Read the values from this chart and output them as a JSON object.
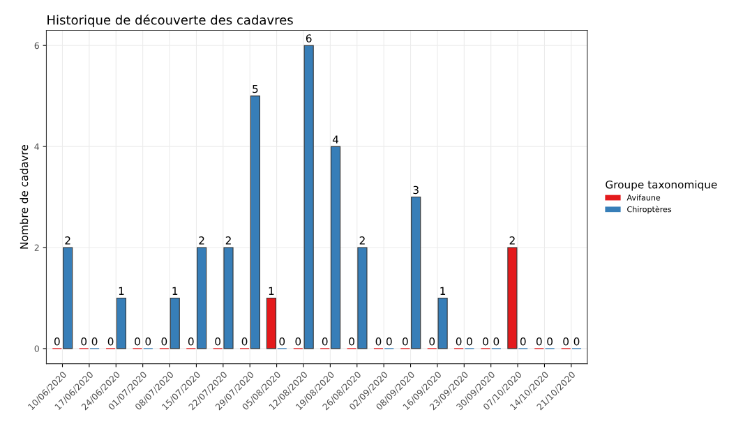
{
  "chart_data": {
    "type": "bar",
    "title": "Historique de découverte des cadavres",
    "ylabel": "Nombre de cadavre",
    "legend_title": "Groupe taxonomique",
    "categories": [
      "10/06/2020",
      "17/06/2020",
      "24/06/2020",
      "01/07/2020",
      "08/07/2020",
      "15/07/2020",
      "22/07/2020",
      "29/07/2020",
      "05/08/2020",
      "12/08/2020",
      "19/08/2020",
      "26/08/2020",
      "02/09/2020",
      "08/09/2020",
      "16/09/2020",
      "23/09/2020",
      "30/09/2020",
      "07/10/2020",
      "14/10/2020",
      "21/10/2020"
    ],
    "series": [
      {
        "name": "Avifaune",
        "color": "#e41a1c",
        "values": [
          0,
          0,
          0,
          0,
          0,
          0,
          0,
          0,
          1,
          0,
          0,
          0,
          0,
          0,
          0,
          0,
          0,
          2,
          0,
          0
        ]
      },
      {
        "name": "Chiroptères",
        "color": "#377eb8",
        "values": [
          2,
          0,
          1,
          0,
          1,
          2,
          2,
          5,
          0,
          6,
          4,
          2,
          0,
          3,
          1,
          0,
          0,
          0,
          0,
          0
        ]
      }
    ],
    "ylim": [
      -0.3,
      6.3
    ],
    "yticks": [
      0,
      2,
      4,
      6
    ],
    "grid": true,
    "legend": "right",
    "data_labels": true
  }
}
